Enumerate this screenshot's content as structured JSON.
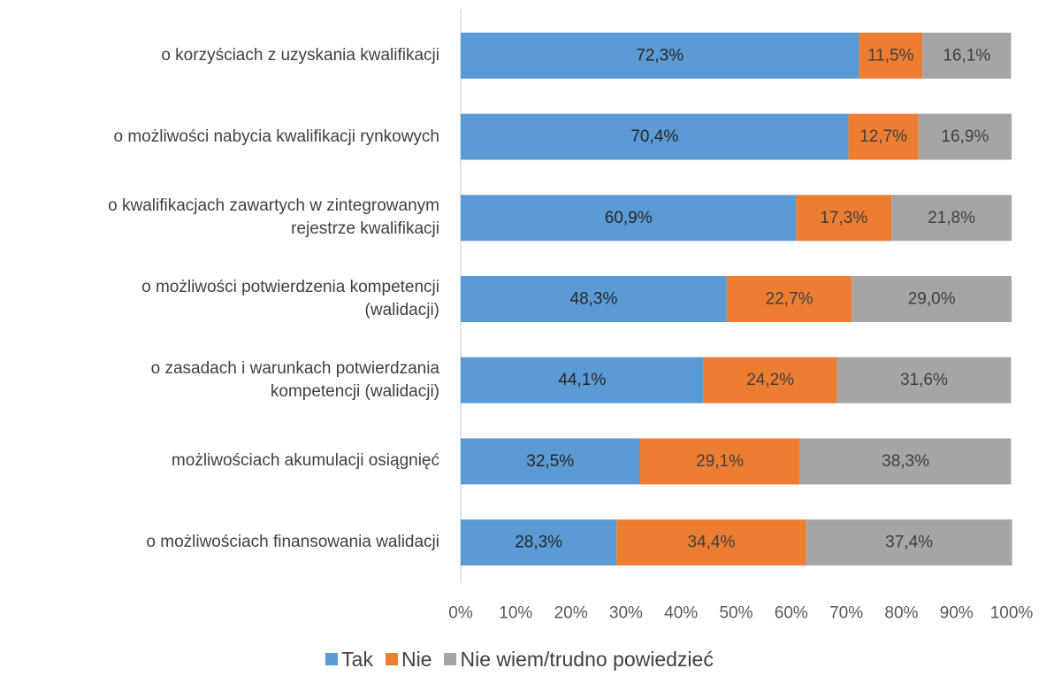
{
  "chart_data": {
    "type": "stacked-bar-horizontal",
    "categories": [
      "o korzyściach z uzyskania kwalifikacji",
      "o możliwości nabycia kwalifikacji rynkowych",
      "o kwalifikacjach zawartych w zintegrowanym\nrejestrze kwalifikacji",
      "o możliwości potwierdzenia kompetencji\n(walidacji)",
      "o zasadach i warunkach potwierdzania\nkompetencji (walidacji)",
      "możliwościach akumulacji osiągnięć",
      "o możliwościach finansowania walidacji"
    ],
    "series": [
      {
        "name": "Tak",
        "color": "#5b9bd5",
        "values": [
          72.3,
          70.4,
          60.9,
          48.3,
          44.1,
          32.5,
          28.3
        ],
        "value_labels": [
          "72,3%",
          "70,4%",
          "60,9%",
          "48,3%",
          "44,1%",
          "32,5%",
          "28,3%"
        ]
      },
      {
        "name": "Nie",
        "color": "#ed7d31",
        "values": [
          11.5,
          12.7,
          17.3,
          22.7,
          24.2,
          29.1,
          34.4
        ],
        "value_labels": [
          "11,5%",
          "12,7%",
          "17,3%",
          "22,7%",
          "24,2%",
          "29,1%",
          "34,4%"
        ]
      },
      {
        "name": "Nie wiem/trudno powiedzieć",
        "color": "#a5a5a5",
        "values": [
          16.1,
          16.9,
          21.8,
          29.0,
          31.6,
          38.3,
          37.4
        ],
        "value_labels": [
          "16,1%",
          "16,9%",
          "21,8%",
          "29,0%",
          "31,6%",
          "38,3%",
          "37,4%"
        ]
      }
    ],
    "xlim": [
      0,
      100
    ],
    "xticks": [
      {
        "value": 0,
        "label": "0%"
      },
      {
        "value": 10,
        "label": "10%"
      },
      {
        "value": 20,
        "label": "20%"
      },
      {
        "value": 30,
        "label": "30%"
      },
      {
        "value": 40,
        "label": "40%"
      },
      {
        "value": 50,
        "label": "50%"
      },
      {
        "value": 60,
        "label": "60%"
      },
      {
        "value": 70,
        "label": "70%"
      },
      {
        "value": 80,
        "label": "80%"
      },
      {
        "value": 90,
        "label": "90%"
      },
      {
        "value": 100,
        "label": "100%"
      }
    ],
    "legend": "bottom"
  }
}
